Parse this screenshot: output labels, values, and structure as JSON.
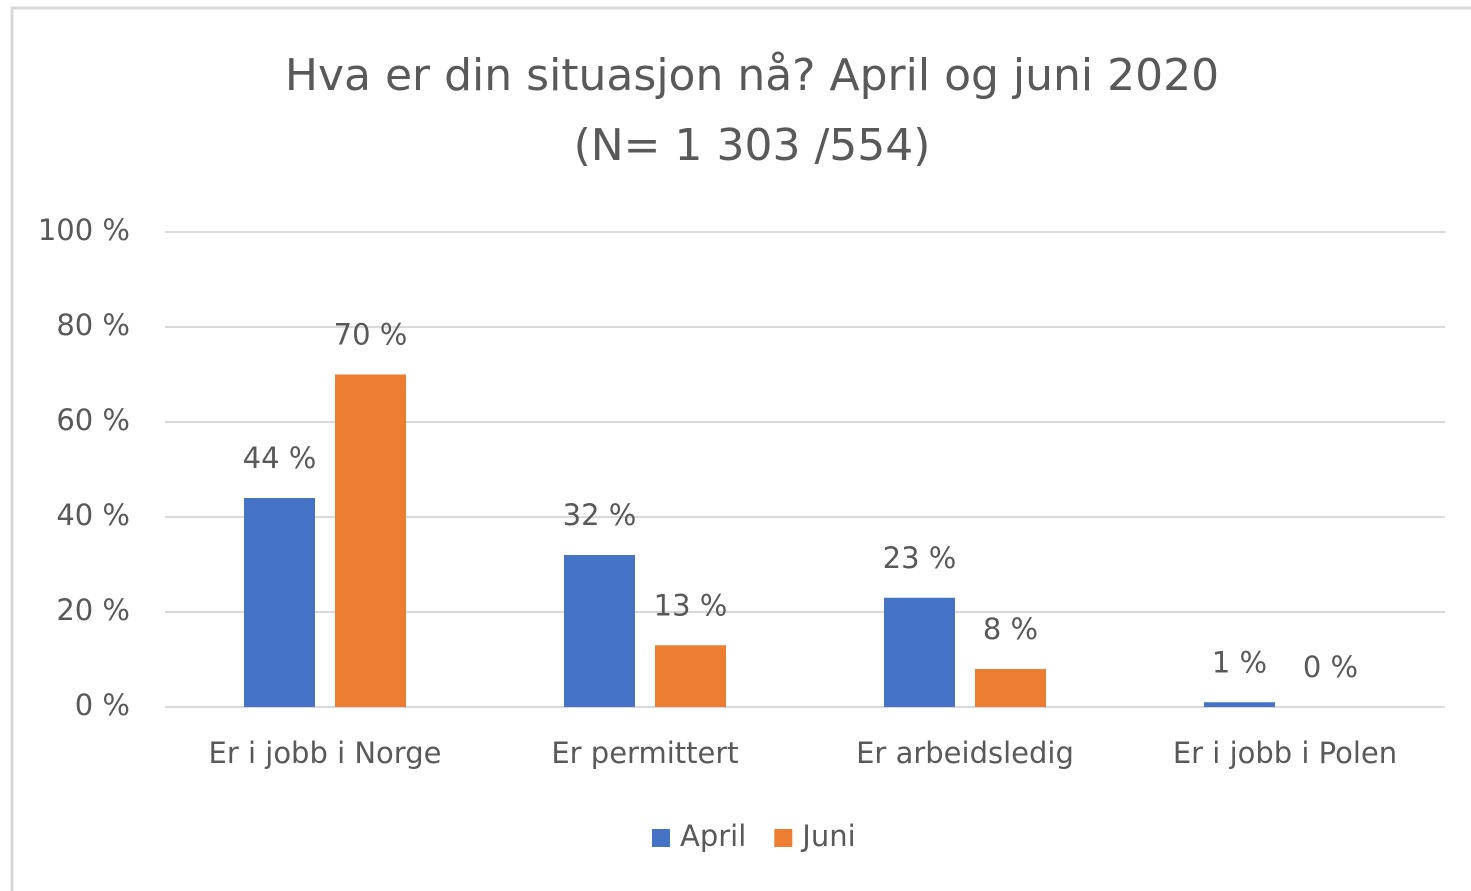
{
  "chart_data": {
    "type": "bar",
    "title": "Hva er din situasjon nå? April og juni 2020",
    "subtitle": "(N= 1 303 /554)",
    "categories": [
      "Er i jobb i Norge",
      "Er permittert",
      "Er arbeidsledig",
      "Er i jobb i Polen"
    ],
    "series": [
      {
        "name": "April",
        "color": "#4472c4",
        "values": [
          44,
          32,
          23,
          1
        ],
        "value_labels": [
          "44 %",
          "32 %",
          "23 %",
          "1 %"
        ]
      },
      {
        "name": "Juni",
        "color": "#ed7d31",
        "values": [
          70,
          13,
          8,
          0
        ],
        "value_labels": [
          "70 %",
          "13 %",
          "8 %",
          "0 %"
        ]
      }
    ],
    "ylim": [
      0,
      100
    ],
    "yticks": [
      {
        "value": 0,
        "label": "0 %"
      },
      {
        "value": 20,
        "label": "20 %"
      },
      {
        "value": 40,
        "label": "40 %"
      },
      {
        "value": 60,
        "label": "60 %"
      },
      {
        "value": 80,
        "label": "80 %"
      },
      {
        "value": 100,
        "label": "100 %"
      }
    ],
    "grid": true,
    "legend": "bottom"
  }
}
